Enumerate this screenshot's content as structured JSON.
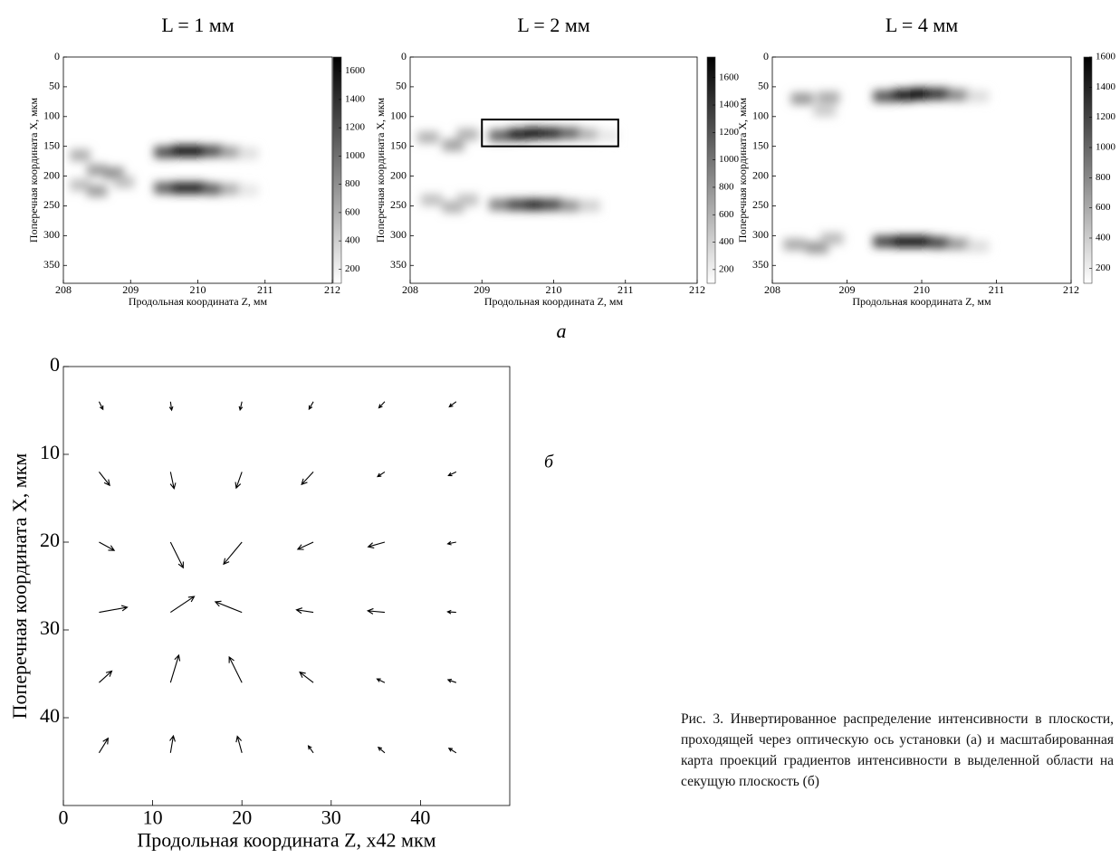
{
  "chart_data": [
    {
      "type": "heatmap",
      "title": "L = 1 мм",
      "xlabel": "Продольная координата Z, мм",
      "ylabel": "Поперечная координата X, мкм",
      "xlim": [
        208,
        212
      ],
      "xticks": [
        208,
        209,
        210,
        211,
        212
      ],
      "ylim": [
        0,
        380
      ],
      "yticks": [
        0,
        50,
        100,
        150,
        200,
        250,
        300,
        350
      ],
      "clim": [
        100,
        1700
      ],
      "cticks": [
        200,
        400,
        600,
        800,
        1000,
        1200,
        1400,
        1600
      ],
      "x": [
        209.5,
        209.75,
        210,
        210.25,
        210.5,
        210.75,
        209.5,
        209.75,
        210,
        210.25,
        210.5,
        210.75,
        208.25,
        208.5,
        208.75,
        208.25,
        208.5,
        208.9
      ],
      "y": [
        160,
        158,
        158,
        158,
        160,
        162,
        220,
        220,
        220,
        222,
        222,
        224,
        165,
        190,
        195,
        215,
        225,
        210
      ],
      "values": [
        1200,
        1650,
        1600,
        1200,
        700,
        300,
        1100,
        1500,
        1500,
        1100,
        600,
        250,
        600,
        700,
        800,
        500,
        700,
        500
      ]
    },
    {
      "type": "heatmap",
      "title": "L = 2 мм",
      "xlabel": "Продольная координата Z, мм",
      "ylabel": "Поперечная координата X, мкм",
      "xlim": [
        208,
        212
      ],
      "xticks": [
        208,
        209,
        210,
        211,
        212
      ],
      "ylim": [
        0,
        380
      ],
      "yticks": [
        0,
        50,
        100,
        150,
        200,
        250,
        300,
        350
      ],
      "clim": [
        100,
        1750
      ],
      "cticks": [
        200,
        400,
        600,
        800,
        1000,
        1200,
        1400,
        1600
      ],
      "highlight": {
        "xlim": [
          209,
          210.9
        ],
        "ylim": [
          105,
          150
        ]
      },
      "x": [
        209.25,
        209.5,
        209.75,
        210,
        210.25,
        210.5,
        210.75,
        209.25,
        209.5,
        209.75,
        210,
        210.25,
        210.5,
        208.25,
        208.6,
        208.8,
        208.3,
        208.6,
        208.8
      ],
      "y": [
        132,
        130,
        128,
        128,
        128,
        130,
        132,
        248,
        248,
        248,
        248,
        250,
        250,
        135,
        148,
        130,
        240,
        252,
        240
      ],
      "values": [
        1100,
        1600,
        1700,
        1500,
        1100,
        600,
        250,
        900,
        1300,
        1500,
        1300,
        800,
        400,
        600,
        700,
        600,
        500,
        600,
        500
      ]
    },
    {
      "type": "heatmap",
      "title": "L = 4 мм",
      "xlabel": "Продольная координата Z, мм",
      "ylabel": "Поперечная координата X, мкм",
      "xlim": [
        208,
        212
      ],
      "xticks": [
        208,
        209,
        210,
        211,
        212
      ],
      "ylim": [
        0,
        380
      ],
      "yticks": [
        0,
        50,
        100,
        150,
        200,
        250,
        300,
        350
      ],
      "clim": [
        100,
        1600
      ],
      "cticks": [
        200,
        400,
        600,
        800,
        1000,
        1200,
        1400,
        1600
      ],
      "x": [
        209.5,
        209.75,
        210,
        210.25,
        210.5,
        210.75,
        208.4,
        208.75,
        208.7,
        209.5,
        209.75,
        210,
        210.25,
        210.5,
        210.75,
        208.3,
        208.6,
        208.8
      ],
      "y": [
        66,
        64,
        62,
        62,
        64,
        66,
        70,
        68,
        90,
        310,
        310,
        310,
        312,
        314,
        318,
        315,
        320,
        305
      ],
      "values": [
        1100,
        1500,
        1600,
        1300,
        800,
        300,
        700,
        600,
        400,
        1200,
        1500,
        1500,
        1200,
        700,
        300,
        600,
        700,
        500
      ]
    },
    {
      "type": "quiver",
      "xlabel": "Продольная координата Z, x42 мкм",
      "ylabel": "Поперечная координата X, мкм",
      "xlim": [
        0,
        50
      ],
      "xticks": [
        0,
        10,
        20,
        30,
        40
      ],
      "ylim": [
        0,
        50
      ],
      "yticks": [
        0,
        10,
        20,
        30,
        40
      ],
      "x": [
        4,
        12,
        20,
        28,
        36,
        44,
        4,
        12,
        20,
        28,
        36,
        44,
        4,
        12,
        20,
        28,
        36,
        44,
        4,
        12,
        20,
        28,
        36,
        44,
        4,
        12,
        20,
        28,
        36,
        44,
        4,
        12,
        20,
        28,
        36,
        44
      ],
      "y": [
        4,
        4,
        4,
        4,
        4,
        4,
        12,
        12,
        12,
        12,
        12,
        12,
        20,
        20,
        20,
        20,
        20,
        20,
        28,
        28,
        28,
        28,
        28,
        28,
        36,
        36,
        36,
        36,
        36,
        36,
        44,
        44,
        44,
        44,
        44,
        44
      ],
      "u": [
        0.27,
        0.08,
        -0.13,
        -0.3,
        -0.41,
        -0.48,
        0.74,
        0.25,
        -0.4,
        -0.82,
        -0.5,
        -0.54,
        1.06,
        0.89,
        -1.28,
        -1.09,
        -1.16,
        -0.59,
        1.97,
        1.66,
        -1.86,
        -1.18,
        -1.19,
        -0.6,
        0.89,
        0.58,
        -0.89,
        -0.95,
        -0.54,
        -0.57,
        0.63,
        0.2,
        -0.32,
        -0.35,
        -0.45,
        -0.51
      ],
      "v": [
        0.54,
        0.59,
        0.58,
        0.52,
        0.43,
        0.36,
        0.94,
        1.17,
        1.13,
        0.88,
        0.33,
        0.26,
        0.58,
        1.79,
        1.54,
        0.5,
        0.33,
        0.12,
        -0.36,
        -1.11,
        -0.74,
        -0.18,
        -0.11,
        -0.04,
        -0.81,
        -1.92,
        -1.79,
        -0.73,
        -0.26,
        -0.2,
        -1.02,
        -1.19,
        -1.16,
        -0.49,
        -0.39,
        -0.32
      ]
    }
  ],
  "panel_labels": [
    "а",
    "б"
  ],
  "caption": "Рис. 3. Инвертированное распределение интенсивности в плоскости, проходящей через оптическую ось установки (а) и масштабированная карта проекций градиентов интенсивности в выделенной области на секущую плоскость (б)"
}
